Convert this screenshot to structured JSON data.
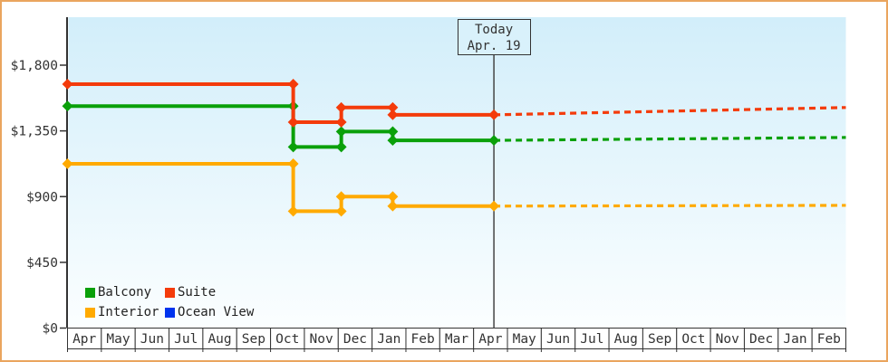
{
  "frame": {
    "border_color": "#EAA55E",
    "background": "#FFFFFF",
    "plot_bg_top": "#D2EEFA",
    "plot_bg_bottom": "#FBFEFF",
    "axis_color": "#333333",
    "today_line_color": "#444444",
    "today_box_fill": "#D9F1FB"
  },
  "today_box": {
    "line1": "Today",
    "line2": "Apr. 19"
  },
  "legend": {
    "items": [
      {
        "id": "balcony",
        "label": "Balcony",
        "color": "#0AA00A"
      },
      {
        "id": "suite",
        "label": "Suite",
        "color": "#F43B0B"
      },
      {
        "id": "interior",
        "label": "Interior",
        "color": "#FFAA00"
      },
      {
        "id": "ocean-view",
        "label": "Ocean View",
        "color": "#0033EE"
      }
    ]
  },
  "chart_data": {
    "type": "line",
    "title": "",
    "x_unit": "month index, 0 = left edge of first Apr, 23 = right edge of last Feb",
    "x_tick_labels": [
      "Apr",
      "May",
      "Jun",
      "Jul",
      "Aug",
      "Sep",
      "Oct",
      "Nov",
      "Dec",
      "Jan",
      "Feb",
      "Mar",
      "Apr",
      "May",
      "Jun",
      "Jul",
      "Aug",
      "Sep",
      "Oct",
      "Nov",
      "Dec",
      "Jan",
      "Feb"
    ],
    "y_ticks": [
      0,
      450,
      900,
      1350,
      1800
    ],
    "y_tick_labels": [
      "$0",
      "$450",
      "$900",
      "$1,350",
      "$1,800"
    ],
    "ylim": [
      0,
      1800
    ],
    "grid": false,
    "legend_position": "bottom-left",
    "today": {
      "x": 12.6,
      "label": "Today",
      "date": "Apr. 19"
    },
    "series": [
      {
        "name": "Balcony",
        "color": "#0AA00A",
        "line_style": "solid, dashed after today (forecast)",
        "points": [
          [
            0,
            1520
          ],
          [
            6.67,
            1520
          ],
          [
            6.67,
            1240
          ],
          [
            8.09,
            1240
          ],
          [
            8.09,
            1345
          ],
          [
            9.61,
            1345
          ],
          [
            9.61,
            1285
          ],
          [
            12.6,
            1285
          ]
        ],
        "forecast": [
          [
            12.6,
            1285
          ],
          [
            23,
            1305
          ]
        ]
      },
      {
        "name": "Suite",
        "color": "#F43B0B",
        "line_style": "solid, dashed after today (forecast)",
        "points": [
          [
            0,
            1670
          ],
          [
            6.67,
            1670
          ],
          [
            6.67,
            1410
          ],
          [
            8.09,
            1410
          ],
          [
            8.09,
            1510
          ],
          [
            9.61,
            1510
          ],
          [
            9.61,
            1460
          ],
          [
            12.6,
            1460
          ]
        ],
        "forecast": [
          [
            12.6,
            1460
          ],
          [
            23,
            1510
          ]
        ]
      },
      {
        "name": "Interior",
        "color": "#FFAA00",
        "line_style": "solid, dashed after today (forecast)",
        "points": [
          [
            0,
            1125
          ],
          [
            6.67,
            1125
          ],
          [
            6.67,
            800
          ],
          [
            8.09,
            800
          ],
          [
            8.09,
            900
          ],
          [
            9.61,
            900
          ],
          [
            9.61,
            835
          ],
          [
            12.6,
            835
          ]
        ],
        "forecast": [
          [
            12.6,
            835
          ],
          [
            23,
            840
          ]
        ]
      },
      {
        "name": "Ocean View",
        "color": "#0033EE",
        "line_style": "no line plotted (legend entry only)",
        "points": [],
        "forecast": []
      }
    ]
  }
}
